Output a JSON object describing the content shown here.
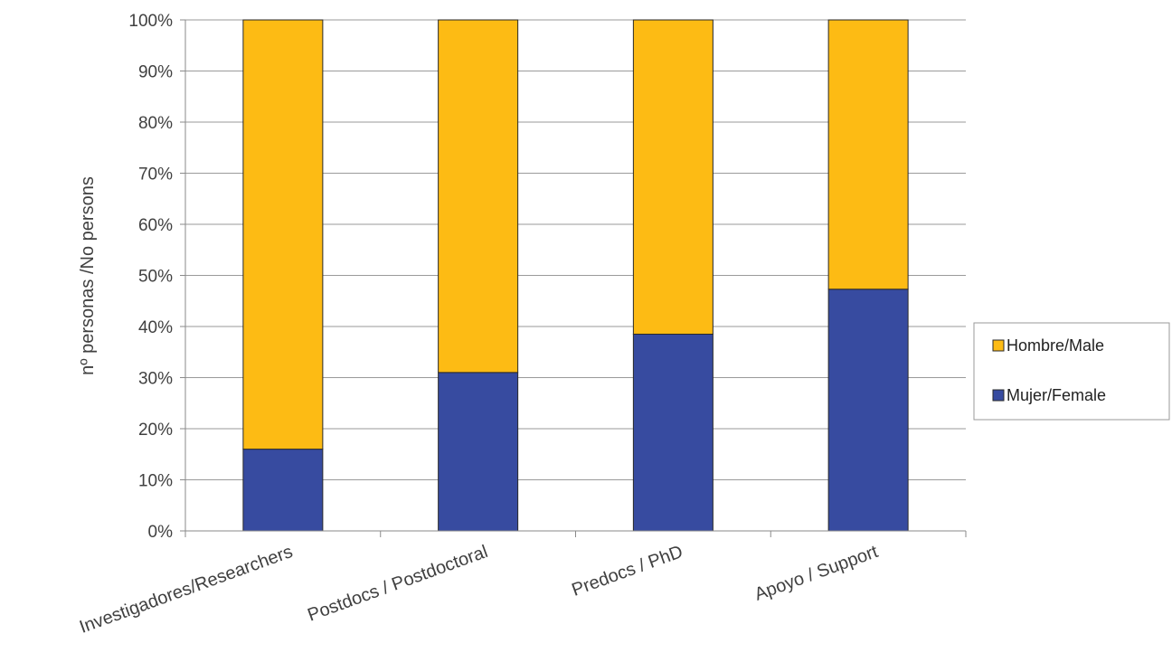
{
  "chart_data": {
    "type": "bar",
    "stacked": true,
    "percent": true,
    "categories": [
      "Investigadores/Researchers",
      "Postdocs / Postdoctoral",
      "Predocs / PhD",
      "Apoyo / Support"
    ],
    "series": [
      {
        "name": "Mujer/Female",
        "values": [
          16,
          31,
          38.5,
          47.3
        ],
        "color": "#374ba0"
      },
      {
        "name": "Hombre/Male",
        "values": [
          84,
          69,
          61.5,
          52.7
        ],
        "color": "#fdbb14"
      }
    ],
    "xlabel": "",
    "ylabel": "nº personas /No persons",
    "ylim": [
      0,
      100
    ],
    "yticks": [
      "0%",
      "10%",
      "20%",
      "30%",
      "40%",
      "50%",
      "60%",
      "70%",
      "80%",
      "90%",
      "100%"
    ],
    "grid": true,
    "legend": "right",
    "legend_order": [
      "Hombre/Male",
      "Mujer/Female"
    ]
  }
}
